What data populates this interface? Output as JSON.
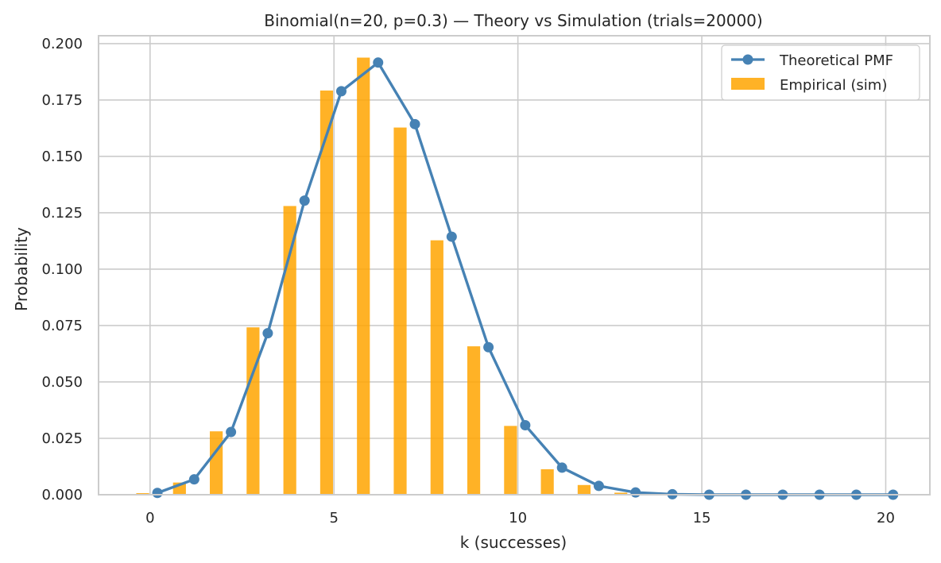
{
  "chart_data": {
    "type": "bar",
    "title": "Binomial(n=20, p=0.3) — Theory vs Simulation (trials=20000)",
    "xlabel": "k (successes)",
    "ylabel": "Probability",
    "xlim": [
      -1.4,
      21.2
    ],
    "ylim": [
      0,
      0.2035
    ],
    "x_ticks": [
      0,
      5,
      10,
      15,
      20
    ],
    "y_ticks": [
      0.0,
      0.025,
      0.05,
      0.075,
      0.1,
      0.125,
      0.15,
      0.175,
      0.2
    ],
    "y_tick_labels": [
      "0.000",
      "0.025",
      "0.050",
      "0.075",
      "0.100",
      "0.125",
      "0.150",
      "0.175",
      "0.200"
    ],
    "grid": true,
    "legend_position": "top-right",
    "k": [
      0,
      1,
      2,
      3,
      4,
      5,
      6,
      7,
      8,
      9,
      10,
      11,
      12,
      13,
      14,
      15,
      16,
      17,
      18,
      19,
      20
    ],
    "series": [
      {
        "name": "Theoretical PMF",
        "kind": "line",
        "color": "#4682b4",
        "values": [
          0.0008,
          0.0068,
          0.0278,
          0.0716,
          0.1304,
          0.1789,
          0.1916,
          0.1643,
          0.1144,
          0.0654,
          0.0308,
          0.012,
          0.0039,
          0.001,
          0.0002,
          0.0,
          0.0,
          0.0,
          0.0,
          0.0,
          0.0
        ]
      },
      {
        "name": "Empirical (sim)",
        "kind": "bar",
        "color": "#ffa500",
        "values": [
          0.0007,
          0.0054,
          0.0281,
          0.0742,
          0.128,
          0.1792,
          0.1938,
          0.1628,
          0.1128,
          0.0658,
          0.0305,
          0.0113,
          0.0043,
          0.0009,
          0.0002,
          0.0,
          0.0,
          0.0,
          0.0,
          0.0,
          0.0
        ]
      }
    ]
  }
}
